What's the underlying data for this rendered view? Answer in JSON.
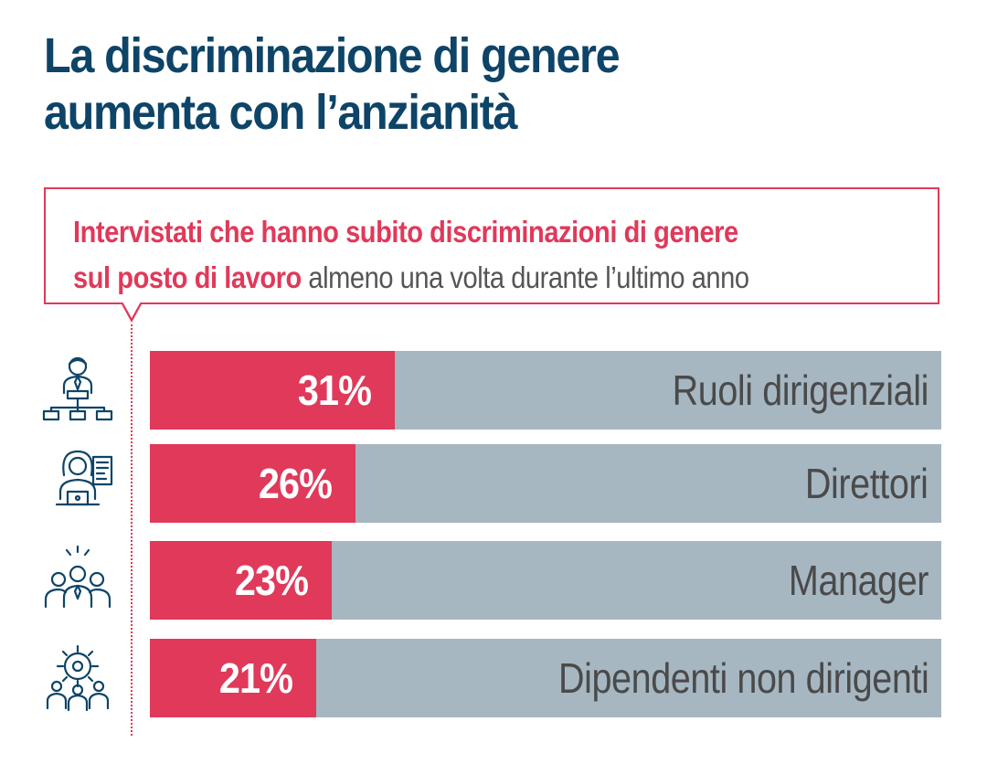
{
  "title": {
    "line1": "La discriminazione di genere",
    "line2": "aumenta con l’anzianità"
  },
  "callout": {
    "bold_line1": "Intervistati che hanno subito discriminazioni di genere",
    "bold_line2": "sul posto di lavoro",
    "regular": " almeno una volta durante l’ultimo anno"
  },
  "colors": {
    "accent": "#e0395a",
    "track": "#a6b7c2",
    "title": "#0e4467",
    "label": "#4a4a4a"
  },
  "chart_data": {
    "type": "bar",
    "orientation": "horizontal",
    "categories": [
      "Ruoli dirigenziali",
      "Direttori",
      "Manager",
      "Dipendenti non dirigenti"
    ],
    "values": [
      31,
      26,
      23,
      21
    ],
    "value_labels": [
      "31%",
      "26%",
      "23%",
      "21%"
    ],
    "unit": "%",
    "xlim": [
      0,
      100
    ],
    "icons": [
      "org-chart-executive-icon",
      "female-director-icon",
      "team-manager-icon",
      "employees-gear-icon"
    ]
  }
}
